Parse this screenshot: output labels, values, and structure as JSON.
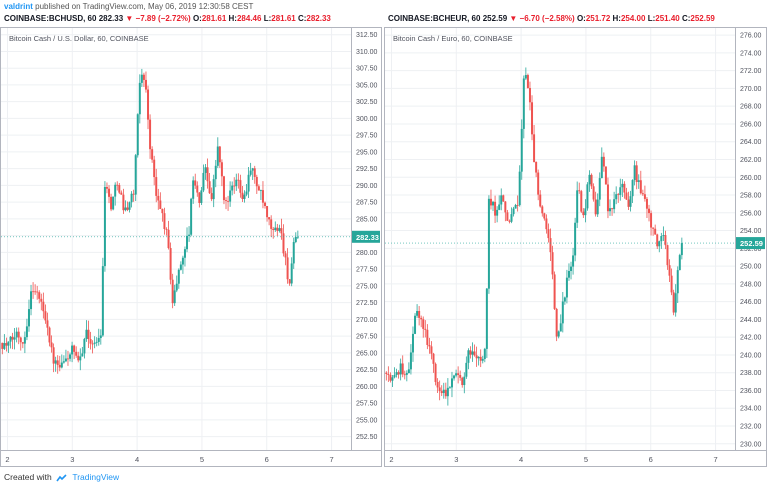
{
  "header": {
    "author": "valdrint",
    "published": "published on TradingView.com, May 06, 2019 12:30:58 CEST"
  },
  "footer": {
    "created_with": "Created with",
    "brand": "TradingView"
  },
  "colors": {
    "up": "#26a69a",
    "down": "#ef5350",
    "last_price_bg": "#26a69a",
    "change_red": "#e91e2c"
  },
  "panels": [
    {
      "symbol": "COINBASE:BCHUSD, 60",
      "last": "282.33",
      "change": "▼ −7.89 (−2.72%)",
      "o_label": "O:",
      "o": "281.61",
      "h_label": "H:",
      "h": "284.46",
      "l_label": "L:",
      "l": "281.61",
      "c_label": "C:",
      "c": "282.33",
      "subtitle": "Bitcoin Cash / U.S. Dollar, 60, COINBASE",
      "price_badge": "282.33"
    },
    {
      "symbol": "COINBASE:BCHEUR, 60",
      "last": "252.59",
      "change": "▼ −6.70 (−2.58%)",
      "o_label": "O:",
      "o": "251.72",
      "h_label": "H:",
      "h": "254.00",
      "l_label": "L:",
      "l": "251.40",
      "c_label": "C:",
      "c": "252.59",
      "subtitle": "Bitcoin Cash / Euro, 60, COINBASE",
      "price_badge": "252.59"
    }
  ],
  "chart_data": [
    {
      "type": "candlestick",
      "title": "Bitcoin Cash / U.S. Dollar, 60, COINBASE",
      "xlabel": "",
      "ylabel": "",
      "x_ticks": [
        "2",
        "3",
        "4",
        "5",
        "6",
        "7"
      ],
      "x_range": [
        1.9,
        7.3
      ],
      "y_ticks": [
        252.5,
        255.0,
        257.5,
        260.0,
        262.5,
        265.0,
        267.5,
        270.0,
        272.5,
        275.0,
        277.5,
        280.0,
        282.5,
        285.0,
        287.5,
        290.0,
        292.5,
        295.0,
        297.5,
        300.0,
        302.5,
        305.0,
        307.5,
        310.0,
        312.5
      ],
      "ylim": [
        250.5,
        313.5
      ],
      "last_price": 282.33,
      "grid": true,
      "path": [
        [
          1.9,
          266.5
        ],
        [
          2.0,
          266.0
        ],
        [
          2.15,
          268.0
        ],
        [
          2.25,
          266.5
        ],
        [
          2.38,
          275.0
        ],
        [
          2.5,
          273.0
        ],
        [
          2.6,
          270.0
        ],
        [
          2.7,
          264.0
        ],
        [
          2.8,
          262.5
        ],
        [
          2.9,
          264.0
        ],
        [
          3.0,
          265.5
        ],
        [
          3.1,
          263.0
        ],
        [
          3.2,
          268.0
        ],
        [
          3.35,
          266.0
        ],
        [
          3.45,
          268.5
        ],
        [
          3.5,
          290.5
        ],
        [
          3.6,
          287.0
        ],
        [
          3.7,
          291.0
        ],
        [
          3.8,
          286.0
        ],
        [
          3.95,
          289.0
        ],
        [
          4.05,
          307.0
        ],
        [
          4.12,
          306.0
        ],
        [
          4.2,
          296.0
        ],
        [
          4.3,
          288.0
        ],
        [
          4.38,
          286.0
        ],
        [
          4.47,
          282.0
        ],
        [
          4.55,
          272.5
        ],
        [
          4.62,
          276.0
        ],
        [
          4.7,
          279.5
        ],
        [
          4.8,
          283.0
        ],
        [
          4.87,
          292.0
        ],
        [
          4.95,
          287.0
        ],
        [
          5.05,
          293.0
        ],
        [
          5.15,
          288.0
        ],
        [
          5.25,
          296.0
        ],
        [
          5.35,
          287.0
        ],
        [
          5.45,
          289.0
        ],
        [
          5.55,
          291.0
        ],
        [
          5.65,
          288.0
        ],
        [
          5.75,
          293.0
        ],
        [
          5.85,
          290.0
        ],
        [
          5.93,
          288.0
        ],
        [
          6.0,
          285.0
        ],
        [
          6.1,
          283.0
        ],
        [
          6.2,
          284.0
        ],
        [
          6.27,
          280.0
        ],
        [
          6.35,
          275.0
        ],
        [
          6.42,
          281.0
        ],
        [
          6.48,
          282.33
        ]
      ]
    },
    {
      "type": "candlestick",
      "title": "Bitcoin Cash / Euro, 60, COINBASE",
      "xlabel": "",
      "ylabel": "",
      "x_ticks": [
        "2",
        "3",
        "4",
        "5",
        "6",
        "7"
      ],
      "x_range": [
        1.9,
        7.3
      ],
      "y_ticks": [
        230.0,
        232.0,
        234.0,
        236.0,
        238.0,
        240.0,
        242.0,
        244.0,
        246.0,
        248.0,
        250.0,
        252.0,
        254.0,
        256.0,
        258.0,
        260.0,
        262.0,
        264.0,
        266.0,
        268.0,
        270.0,
        272.0,
        274.0,
        276.0
      ],
      "ylim": [
        229.3,
        276.8
      ],
      "last_price": 252.59,
      "grid": true,
      "path": [
        [
          1.9,
          238.0
        ],
        [
          2.0,
          237.0
        ],
        [
          2.15,
          238.5
        ],
        [
          2.25,
          237.5
        ],
        [
          2.38,
          245.0
        ],
        [
          2.5,
          243.0
        ],
        [
          2.6,
          240.5
        ],
        [
          2.7,
          236.5
        ],
        [
          2.8,
          235.5
        ],
        [
          2.9,
          236.5
        ],
        [
          3.0,
          238.5
        ],
        [
          3.1,
          237.0
        ],
        [
          3.2,
          240.5
        ],
        [
          3.35,
          239.5
        ],
        [
          3.45,
          240.5
        ],
        [
          3.5,
          258.0
        ],
        [
          3.6,
          256.0
        ],
        [
          3.7,
          258.5
        ],
        [
          3.8,
          255.0
        ],
        [
          3.95,
          257.0
        ],
        [
          4.05,
          272.0
        ],
        [
          4.12,
          270.0
        ],
        [
          4.2,
          262.0
        ],
        [
          4.3,
          256.0
        ],
        [
          4.38,
          255.0
        ],
        [
          4.47,
          251.0
        ],
        [
          4.55,
          241.5
        ],
        [
          4.62,
          244.5
        ],
        [
          4.7,
          248.0
        ],
        [
          4.8,
          251.0
        ],
        [
          4.87,
          259.5
        ],
        [
          4.95,
          255.0
        ],
        [
          5.05,
          260.0
        ],
        [
          5.15,
          255.5
        ],
        [
          5.25,
          263.0
        ],
        [
          5.35,
          256.0
        ],
        [
          5.45,
          257.5
        ],
        [
          5.55,
          259.0
        ],
        [
          5.65,
          256.5
        ],
        [
          5.75,
          261.0
        ],
        [
          5.85,
          258.0
        ],
        [
          5.93,
          257.0
        ],
        [
          6.0,
          254.5
        ],
        [
          6.1,
          252.5
        ],
        [
          6.2,
          253.5
        ],
        [
          6.27,
          249.5
        ],
        [
          6.35,
          245.0
        ],
        [
          6.42,
          250.0
        ],
        [
          6.48,
          252.59
        ]
      ]
    }
  ]
}
